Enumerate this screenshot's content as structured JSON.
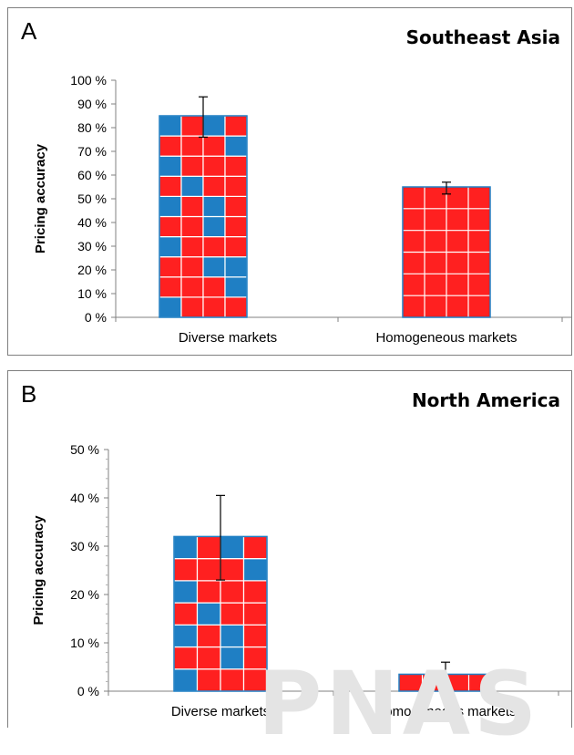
{
  "watermark": "PNAS",
  "chart_data": [
    {
      "type": "bar",
      "panel_label": "A",
      "title": "Southeast Asia",
      "ylabel": "Pricing accuracy",
      "xlabel": "",
      "ylim": [
        0,
        100
      ],
      "yticks": [
        "0 %",
        "10 %",
        "20 %",
        "30 %",
        "40 %",
        "50 %",
        "60 %",
        "70 %",
        "80 %",
        "90 %",
        "100 %"
      ],
      "categories": [
        "Diverse markets",
        "Homogeneous markets"
      ],
      "values": [
        85,
        55
      ],
      "error": [
        [
          76,
          93
        ],
        [
          52,
          57
        ]
      ],
      "grid": false,
      "colors": {
        "red": "#ff2020",
        "blue": "#1f7fc4"
      },
      "patterns": [
        [
          [
            "B",
            "R",
            "R",
            "R"
          ],
          [
            "R",
            "R",
            "R",
            "B"
          ],
          [
            "R",
            "R",
            "B",
            "B"
          ],
          [
            "B",
            "R",
            "R",
            "R"
          ],
          [
            "R",
            "R",
            "B",
            "R"
          ],
          [
            "B",
            "R",
            "B",
            "R"
          ],
          [
            "R",
            "B",
            "R",
            "R"
          ],
          [
            "B",
            "R",
            "R",
            "R"
          ],
          [
            "R",
            "R",
            "R",
            "B"
          ],
          [
            "B",
            "R",
            "B",
            "R"
          ]
        ],
        "solid-red"
      ]
    },
    {
      "type": "bar",
      "panel_label": "B",
      "title": "North America",
      "ylabel": "Pricing accuracy",
      "xlabel": "",
      "ylim": [
        0,
        50
      ],
      "yticks": [
        "0 %",
        "10 %",
        "20 %",
        "30 %",
        "40 %",
        "50 %"
      ],
      "categories": [
        "Diverse markets",
        "Homogeneous markets"
      ],
      "values": [
        32,
        3.5
      ],
      "error": [
        [
          23,
          40.5
        ],
        [
          0.5,
          6
        ]
      ],
      "grid": false,
      "colors": {
        "red": "#ff2020",
        "blue": "#1f7fc4"
      },
      "patterns": [
        [
          [
            "B",
            "R",
            "R",
            "R"
          ],
          [
            "R",
            "R",
            "B",
            "R"
          ],
          [
            "B",
            "R",
            "B",
            "R"
          ],
          [
            "R",
            "B",
            "R",
            "R"
          ],
          [
            "B",
            "R",
            "R",
            "R"
          ],
          [
            "R",
            "R",
            "R",
            "B"
          ],
          [
            "B",
            "R",
            "B",
            "R"
          ]
        ],
        "solid-red"
      ]
    }
  ]
}
